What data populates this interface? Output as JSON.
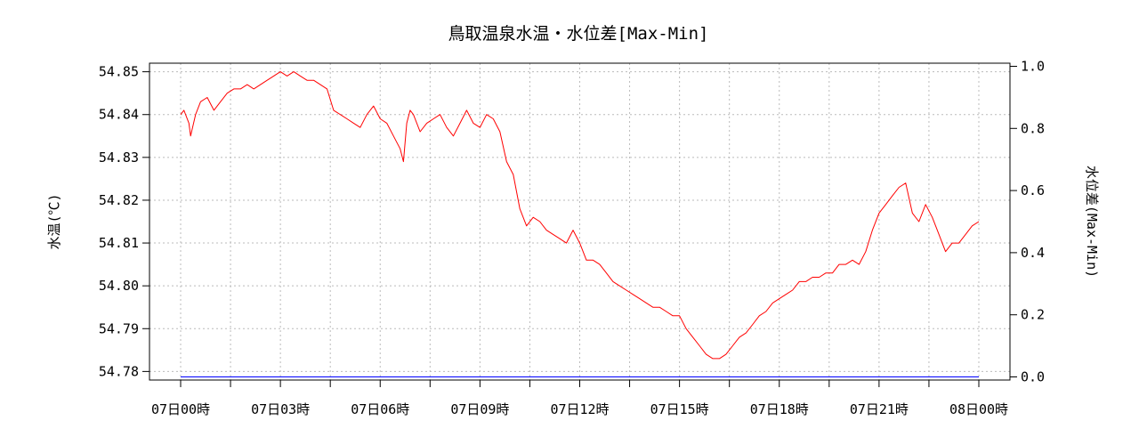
{
  "chart_data": {
    "type": "line",
    "title": "鳥取温泉水温・水位差[Max-Min]",
    "ylabel": "水温(℃)",
    "y2label": "水位差(Max-Min)",
    "xlabel": "",
    "x_ticks": [
      "07日00時",
      "07日03時",
      "07日06時",
      "07日09時",
      "07日12時",
      "07日15時",
      "07日18時",
      "07日21時",
      "08日00時"
    ],
    "x_range_hours": [
      0,
      24
    ],
    "ylim": [
      54.778,
      54.852
    ],
    "y_ticks": [
      "54.78",
      "54.79",
      "54.80",
      "54.81",
      "54.82",
      "54.83",
      "54.84",
      "54.85"
    ],
    "y2lim": [
      -0.01,
      1.01
    ],
    "y2_ticks": [
      "0.0",
      "0.2",
      "0.4",
      "0.6",
      "0.8",
      "1.0"
    ],
    "grid": true,
    "series": [
      {
        "axis": "left",
        "color": "#ff0000",
        "x_hours": [
          0.0,
          0.1,
          0.25,
          0.3,
          0.45,
          0.6,
          0.8,
          1.0,
          1.2,
          1.4,
          1.6,
          1.8,
          2.0,
          2.2,
          2.4,
          2.6,
          2.8,
          3.0,
          3.2,
          3.4,
          3.6,
          3.8,
          4.0,
          4.2,
          4.4,
          4.6,
          4.8,
          5.0,
          5.2,
          5.4,
          5.6,
          5.8,
          6.0,
          6.2,
          6.4,
          6.6,
          6.7,
          6.8,
          6.9,
          7.0,
          7.2,
          7.4,
          7.6,
          7.8,
          8.0,
          8.2,
          8.4,
          8.6,
          8.8,
          9.0,
          9.2,
          9.4,
          9.6,
          9.8,
          10.0,
          10.2,
          10.4,
          10.6,
          10.8,
          11.0,
          11.2,
          11.4,
          11.6,
          11.8,
          12.0,
          12.2,
          12.4,
          12.6,
          12.8,
          13.0,
          13.2,
          13.4,
          13.6,
          13.8,
          14.0,
          14.2,
          14.4,
          14.6,
          14.8,
          15.0,
          15.2,
          15.4,
          15.6,
          15.8,
          16.0,
          16.2,
          16.4,
          16.6,
          16.8,
          17.0,
          17.2,
          17.4,
          17.6,
          17.8,
          18.0,
          18.2,
          18.4,
          18.6,
          18.8,
          19.0,
          19.2,
          19.4,
          19.6,
          19.8,
          20.0,
          20.2,
          20.4,
          20.6,
          20.8,
          21.0,
          21.2,
          21.4,
          21.6,
          21.8,
          22.0,
          22.2,
          22.4,
          22.6,
          22.8,
          23.0,
          23.2,
          23.4,
          23.6,
          23.8,
          24.0
        ],
        "values": [
          54.84,
          54.841,
          54.838,
          54.835,
          54.84,
          54.843,
          54.844,
          54.841,
          54.843,
          54.845,
          54.846,
          54.846,
          54.847,
          54.846,
          54.847,
          54.848,
          54.849,
          54.85,
          54.849,
          54.85,
          54.849,
          54.848,
          54.848,
          54.847,
          54.846,
          54.841,
          54.84,
          54.839,
          54.838,
          54.837,
          54.84,
          54.842,
          54.839,
          54.838,
          54.835,
          54.832,
          54.829,
          54.838,
          54.841,
          54.84,
          54.836,
          54.838,
          54.839,
          54.84,
          54.837,
          54.835,
          54.838,
          54.841,
          54.838,
          54.837,
          54.84,
          54.839,
          54.836,
          54.829,
          54.826,
          54.818,
          54.814,
          54.816,
          54.815,
          54.813,
          54.812,
          54.811,
          54.81,
          54.813,
          54.81,
          54.806,
          54.806,
          54.805,
          54.803,
          54.801,
          54.8,
          54.799,
          54.798,
          54.797,
          54.796,
          54.795,
          54.795,
          54.794,
          54.793,
          54.793,
          54.79,
          54.788,
          54.786,
          54.784,
          54.783,
          54.783,
          54.784,
          54.786,
          54.788,
          54.789,
          54.791,
          54.793,
          54.794,
          54.796,
          54.797,
          54.798,
          54.799,
          54.801,
          54.801,
          54.802,
          54.802,
          54.803,
          54.803,
          54.805,
          54.805,
          54.806,
          54.805,
          54.808,
          54.813,
          54.817,
          54.819,
          54.821,
          54.823,
          54.824,
          54.817,
          54.815,
          54.819,
          54.816,
          54.812,
          54.808,
          54.81,
          54.81,
          54.812,
          54.814,
          54.815
        ]
      },
      {
        "axis": "right",
        "color": "#0000ff",
        "x_hours": [
          0,
          24
        ],
        "values": [
          0.0,
          0.0
        ]
      }
    ]
  }
}
